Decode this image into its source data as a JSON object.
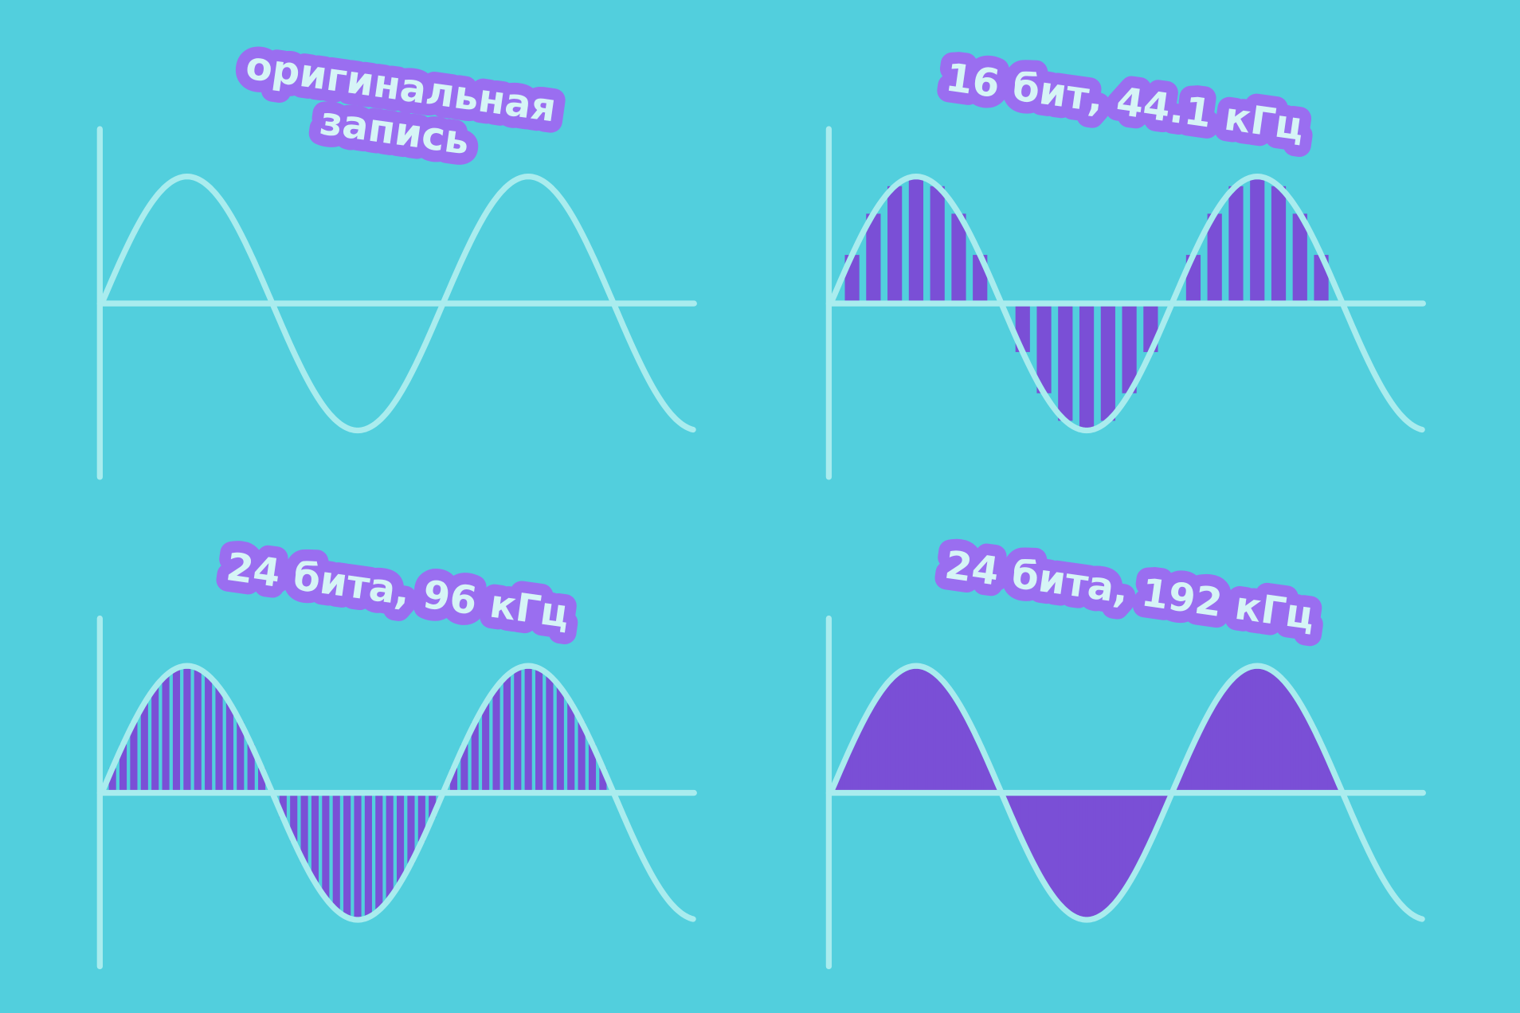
{
  "panels": [
    {
      "label": [
        "оригинальная",
        "запись"
      ]
    },
    {
      "label": [
        "16 бит, 44.1 кГц"
      ]
    },
    {
      "label": [
        "24 бита, 96 кГц"
      ]
    },
    {
      "label": [
        "24 бита, 192 кГц"
      ]
    }
  ]
}
